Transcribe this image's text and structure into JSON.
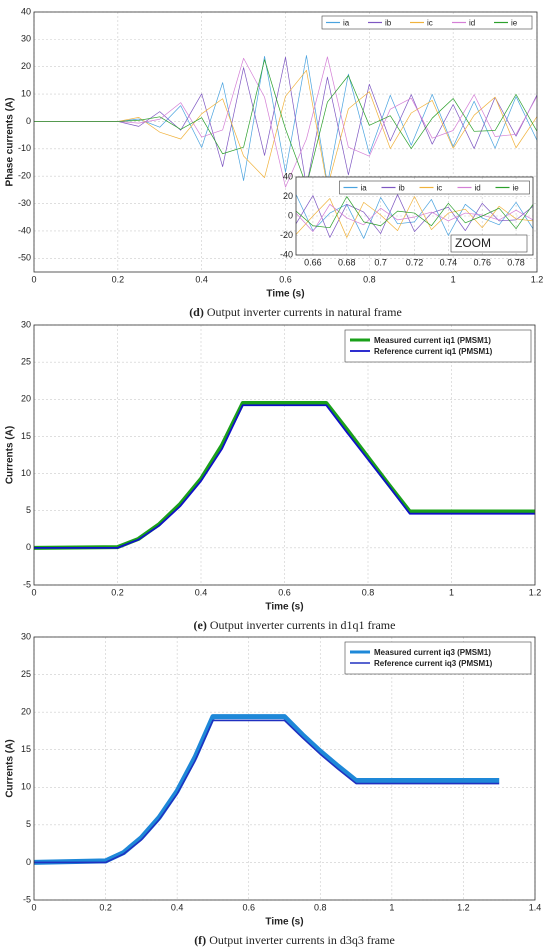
{
  "chart_data": [
    {
      "type": "line",
      "ylabel": "Phase currents (A)",
      "xlabel": "Time (s)",
      "caption_label": "(d)",
      "caption": "Output inverter currents in natural frame",
      "xlim": [
        0,
        1.2
      ],
      "xticks": [
        0,
        0.2,
        0.4,
        0.6,
        0.8,
        1,
        1.2
      ],
      "ylim": [
        -55,
        40
      ],
      "yticks": [
        -50,
        -40,
        -30,
        -20,
        -10,
        0,
        10,
        20,
        30,
        40
      ],
      "grid": true,
      "legend_position": "upper right",
      "legend_layout": "horizontal",
      "line_width": 0.7,
      "x": [
        0,
        0.05,
        0.1,
        0.15,
        0.2,
        0.25,
        0.3,
        0.35,
        0.4,
        0.45,
        0.5,
        0.55,
        0.6,
        0.65,
        0.7,
        0.75,
        0.8,
        0.85,
        0.9,
        0.95,
        1,
        1.05,
        1.1,
        1.15,
        1.2
      ],
      "series": [
        {
          "name": "ia",
          "color": "#4aa3df",
          "values": [
            0,
            0,
            0,
            0,
            0,
            0.9,
            -2.1,
            5.8,
            -9.5,
            14.2,
            -21.6,
            23.8,
            -18.5,
            24.1,
            -22.9,
            17.3,
            -11.8,
            9.6,
            -8.7,
            9.9,
            -9.2,
            7.4,
            -9.8,
            9.1,
            -6.9
          ]
        },
        {
          "name": "ib",
          "color": "#7e57c2",
          "values": [
            0,
            0,
            0,
            0,
            0,
            -1.8,
            3.6,
            -3.2,
            10.1,
            -16.5,
            19.7,
            -12.4,
            23.5,
            -23.8,
            16.2,
            -19.5,
            13.6,
            -7.1,
            9.8,
            -8.3,
            6.2,
            -9.9,
            8.8,
            -5.4,
            9.7
          ]
        },
        {
          "name": "ic",
          "color": "#f0b23c",
          "values": [
            0,
            0,
            0,
            0,
            0,
            1.5,
            -3.9,
            -6.4,
            2.8,
            8.3,
            -12.6,
            -20.5,
            9.2,
            18.7,
            -24.0,
            4.6,
            10.9,
            -9.9,
            3.1,
            7.7,
            -9.8,
            2.3,
            8.9,
            -9.6,
            1.8
          ]
        },
        {
          "name": "id",
          "color": "#d47fd6",
          "values": [
            0,
            0,
            0,
            0,
            0,
            -0.6,
            0.8,
            6.9,
            -5.7,
            -3.1,
            23.1,
            8.9,
            -24.0,
            -6.4,
            23.6,
            -9.4,
            -12.7,
            4.5,
            8.5,
            -6.1,
            -3.3,
            9.8,
            -5.5,
            -4.7,
            9.2
          ]
        },
        {
          "name": "ie",
          "color": "#2ca02c",
          "values": [
            0,
            0,
            0,
            0,
            0,
            0.4,
            1.7,
            -2.9,
            1.4,
            -11.8,
            -9.4,
            22.6,
            -2.7,
            -23.5,
            7.1,
            16.8,
            -1.4,
            2.1,
            -9.9,
            1.2,
            8.4,
            -3.6,
            -3.3,
            9.9,
            -3.6
          ]
        }
      ]
    },
    {
      "type": "line",
      "annotation": "ZOOM",
      "xlim": [
        0.65,
        0.79
      ],
      "xticks": [
        0.66,
        0.68,
        0.7,
        0.72,
        0.74,
        0.76,
        0.78
      ],
      "ylim": [
        -40,
        40
      ],
      "yticks": [
        -40,
        -20,
        0,
        20,
        40
      ],
      "grid": true,
      "legend_position": "upper center",
      "legend_layout": "horizontal",
      "line_width": 0.7,
      "x": [
        0.65,
        0.66,
        0.67,
        0.68,
        0.69,
        0.7,
        0.71,
        0.72,
        0.73,
        0.74,
        0.75,
        0.76,
        0.77,
        0.78,
        0.79
      ],
      "series": [
        {
          "name": "ia",
          "color": "#4aa3df",
          "values": [
            22,
            -15,
            3,
            12,
            -23,
            19,
            -8,
            -6,
            17,
            -20,
            12,
            -2,
            -9,
            14,
            -13
          ]
        },
        {
          "name": "ib",
          "color": "#7e57c2",
          "values": [
            -8,
            21,
            -22,
            12,
            4,
            -18,
            22,
            -16,
            3,
            9,
            -15,
            13,
            -5,
            -4,
            10
          ]
        },
        {
          "name": "ic",
          "color": "#f0b23c",
          "values": [
            -19,
            0,
            18,
            -22,
            14,
            1,
            -15,
            20,
            -14,
            3,
            7,
            -12,
            10,
            -3,
            -5
          ]
        },
        {
          "name": "id",
          "color": "#d47fd6",
          "values": [
            3,
            -16,
            12,
            -2,
            -9,
            8,
            -4,
            -1,
            4,
            -5,
            3,
            1,
            -4,
            6,
            -4
          ]
        },
        {
          "name": "ie",
          "color": "#2ca02c",
          "values": [
            5,
            -10,
            -12,
            20,
            -6,
            -10,
            5,
            3,
            -10,
            13,
            -7,
            0,
            8,
            -13,
            12
          ]
        }
      ]
    },
    {
      "type": "line",
      "ylabel": "Currents (A)",
      "xlabel": "Time (s)",
      "caption_label": "(e)",
      "caption": "Output inverter currents in d1q1 frame",
      "xlim": [
        0,
        1.2
      ],
      "xticks": [
        0,
        0.2,
        0.4,
        0.6,
        0.8,
        1,
        1.2
      ],
      "ylim": [
        -5,
        30
      ],
      "yticks": [
        -5,
        0,
        5,
        10,
        15,
        20,
        25,
        30
      ],
      "grid": true,
      "legend_position": "upper right",
      "legend_layout": "vertical",
      "x": [
        0,
        0.2,
        0.25,
        0.3,
        0.35,
        0.4,
        0.45,
        0.5,
        0.7,
        0.75,
        0.8,
        0.85,
        0.9,
        1.2
      ],
      "series": [
        {
          "name": "Measured current iq1 (PMSM1)",
          "color": "#1aa01a",
          "width": 4,
          "values": [
            0,
            0.1,
            1.2,
            3.2,
            5.9,
            9.3,
            13.8,
            19.5,
            19.5,
            15.9,
            12.2,
            8.5,
            4.9,
            4.9
          ]
        },
        {
          "name": "Reference current iq1 (PMSM1)",
          "color": "#1010c8",
          "width": 1.8,
          "values": [
            0,
            0,
            1.1,
            3.0,
            5.6,
            9.0,
            13.3,
            19.2,
            19.2,
            15.5,
            11.9,
            8.3,
            4.6,
            4.6
          ]
        }
      ]
    },
    {
      "type": "line",
      "ylabel": "Currents (A)",
      "xlabel": "Time (s)",
      "caption_label": "(f)",
      "caption": "Output inverter currents in d3q3 frame",
      "xlim": [
        0,
        1.4
      ],
      "xticks": [
        0,
        0.2,
        0.4,
        0.6,
        0.8,
        1,
        1.2,
        1.4
      ],
      "ylim": [
        -5,
        30
      ],
      "yticks": [
        -5,
        0,
        5,
        10,
        15,
        20,
        25,
        30
      ],
      "grid": true,
      "legend_position": "upper right",
      "legend_layout": "vertical",
      "x": [
        0,
        0.2,
        0.25,
        0.3,
        0.35,
        0.4,
        0.45,
        0.5,
        0.7,
        0.75,
        0.8,
        0.85,
        0.9,
        1.3
      ],
      "series": [
        {
          "name": "Measured current iq3 (PMSM1)",
          "color": "#1e88d8",
          "width": 5,
          "values": [
            0,
            0.2,
            1.3,
            3.3,
            6.0,
            9.5,
            14.0,
            19.4,
            19.4,
            17.0,
            14.8,
            12.8,
            10.9,
            10.9
          ]
        },
        {
          "name": "Reference current iq3 (PMSM1)",
          "color": "#2030c0",
          "width": 1.6,
          "values": [
            0,
            0,
            1.1,
            3.0,
            5.7,
            9.1,
            13.5,
            18.9,
            18.9,
            16.6,
            14.4,
            12.4,
            10.5,
            10.5
          ]
        }
      ]
    }
  ]
}
